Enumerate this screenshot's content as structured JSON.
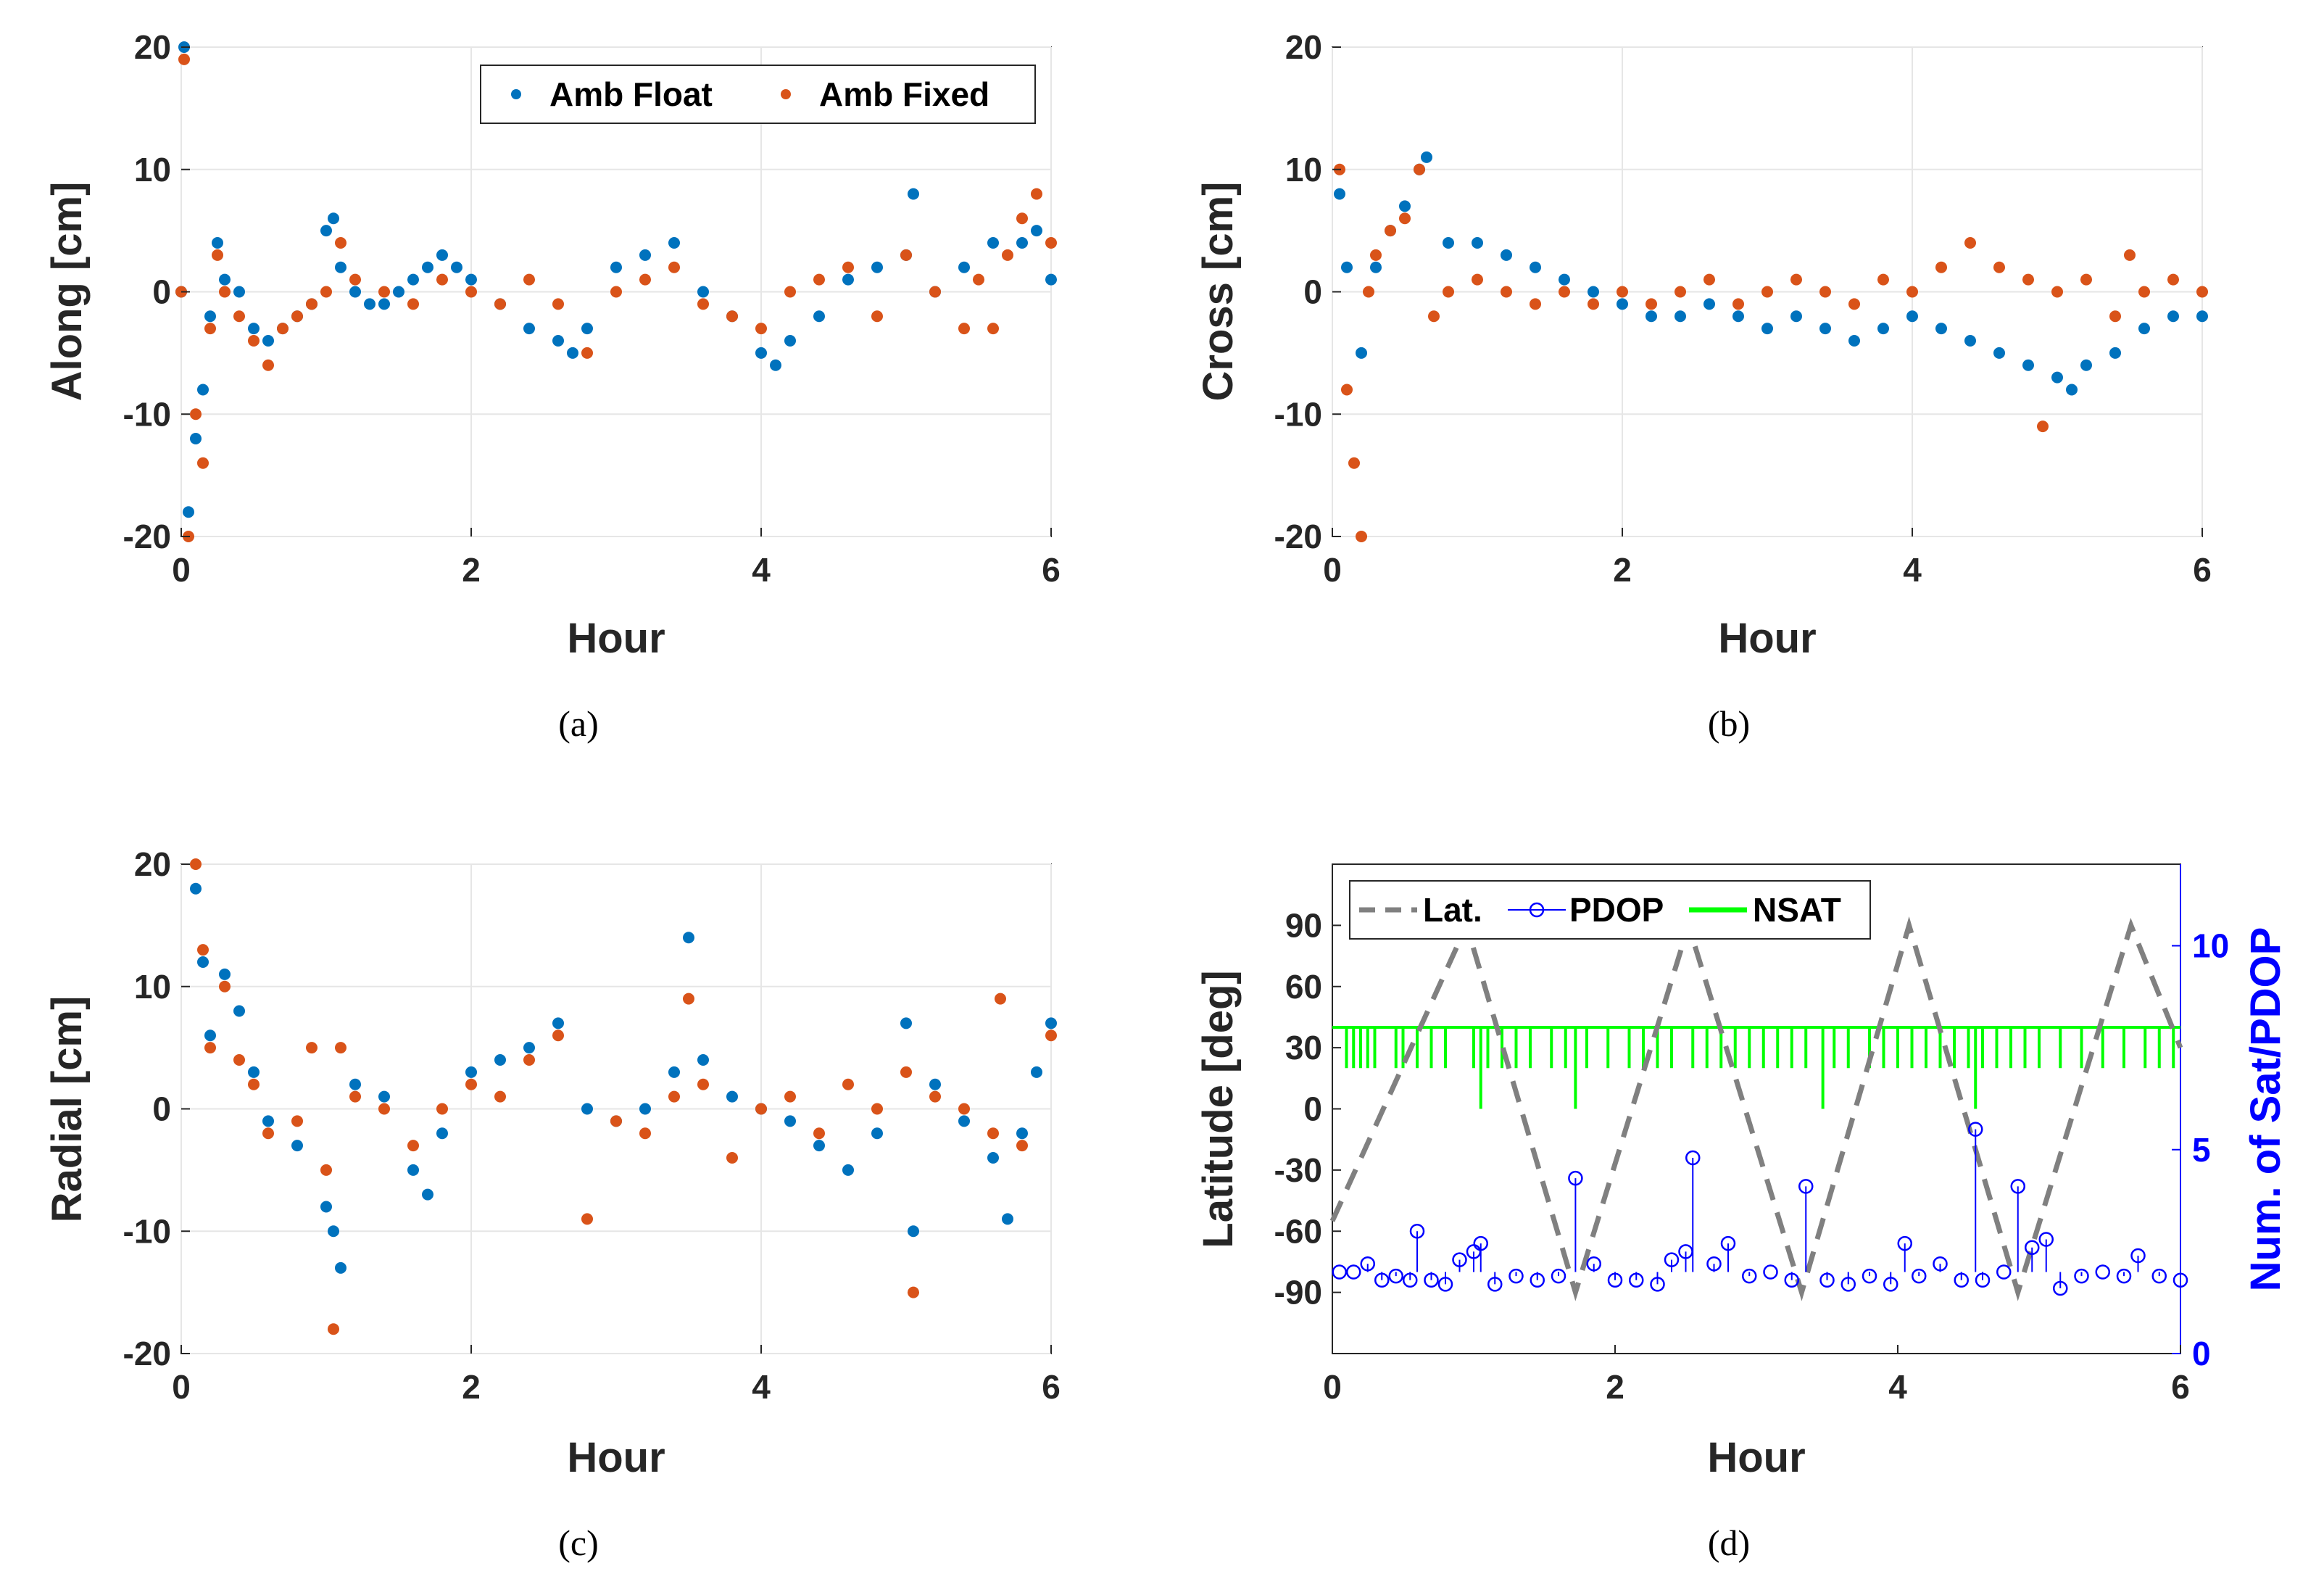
{
  "colors": {
    "float": "#0072BD",
    "fixed": "#D95319",
    "lat": "#808080",
    "pdop": "#0000FF",
    "nsat": "#00FF00",
    "right_axis": "#0000FF"
  },
  "chart_data": [
    {
      "type": "scatter",
      "caption": "(a)",
      "xlabel": "Hour",
      "ylabel": "Along [cm]",
      "xlim": [
        0,
        6
      ],
      "ylim": [
        -20,
        20
      ],
      "xticks": [
        0,
        2,
        4,
        6
      ],
      "yticks": [
        -20,
        -10,
        0,
        10,
        20
      ],
      "grid": true,
      "legend": {
        "position": "top-right",
        "entries": [
          "Amb Float",
          "Amb Fixed"
        ]
      },
      "series": [
        {
          "name": "Amb Float",
          "color": "#0072BD",
          "x": [
            0.0,
            0.02,
            0.05,
            0.1,
            0.15,
            0.2,
            0.25,
            0.3,
            0.4,
            0.5,
            0.6,
            0.7,
            0.8,
            0.9,
            1.0,
            1.05,
            1.1,
            1.2,
            1.3,
            1.4,
            1.5,
            1.6,
            1.7,
            1.8,
            1.9,
            2.0,
            2.2,
            2.4,
            2.6,
            2.7,
            2.8,
            3.0,
            3.2,
            3.4,
            3.6,
            3.8,
            4.0,
            4.1,
            4.2,
            4.4,
            4.6,
            4.8,
            5.0,
            5.05,
            5.2,
            5.4,
            5.6,
            5.8,
            5.9,
            6.0
          ],
          "y": [
            0,
            20,
            -18,
            -12,
            -8,
            -2,
            4,
            1,
            0,
            -3,
            -4,
            -3,
            -2,
            -1,
            5,
            6,
            2,
            0,
            -1,
            -1,
            0,
            1,
            2,
            3,
            2,
            1,
            -1,
            -3,
            -4,
            -5,
            -3,
            2,
            3,
            4,
            0,
            -2,
            -5,
            -6,
            -4,
            -2,
            1,
            2,
            3,
            8,
            0,
            2,
            4,
            4,
            5,
            1
          ]
        },
        {
          "name": "Amb Fixed",
          "color": "#D95319",
          "x": [
            0.0,
            0.02,
            0.05,
            0.1,
            0.15,
            0.2,
            0.25,
            0.3,
            0.4,
            0.5,
            0.6,
            0.7,
            0.8,
            0.9,
            1.0,
            1.1,
            1.2,
            1.4,
            1.6,
            1.8,
            2.0,
            2.2,
            2.4,
            2.6,
            2.8,
            3.0,
            3.2,
            3.4,
            3.6,
            3.8,
            4.0,
            4.2,
            4.4,
            4.6,
            4.8,
            5.0,
            5.2,
            5.4,
            5.5,
            5.6,
            5.7,
            5.8,
            5.9,
            6.0
          ],
          "y": [
            0,
            19,
            -20,
            -10,
            -14,
            -3,
            3,
            0,
            -2,
            -4,
            -6,
            -3,
            -2,
            -1,
            0,
            4,
            1,
            0,
            -1,
            1,
            0,
            -1,
            1,
            -1,
            -5,
            0,
            1,
            2,
            -1,
            -2,
            -3,
            0,
            1,
            2,
            -2,
            3,
            0,
            -3,
            1,
            -3,
            3,
            6,
            8,
            4
          ]
        }
      ]
    },
    {
      "type": "scatter",
      "caption": "(b)",
      "xlabel": "Hour",
      "ylabel": "Cross [cm]",
      "xlim": [
        0,
        6
      ],
      "ylim": [
        -20,
        20
      ],
      "xticks": [
        0,
        2,
        4,
        6
      ],
      "yticks": [
        -20,
        -10,
        0,
        10,
        20
      ],
      "grid": true,
      "series": [
        {
          "name": "Amb Float",
          "color": "#0072BD",
          "x": [
            0.05,
            0.1,
            0.2,
            0.3,
            0.4,
            0.5,
            0.6,
            0.65,
            0.8,
            1.0,
            1.2,
            1.4,
            1.6,
            1.8,
            2.0,
            2.2,
            2.4,
            2.6,
            2.8,
            3.0,
            3.2,
            3.4,
            3.6,
            3.8,
            4.0,
            4.2,
            4.4,
            4.6,
            4.8,
            5.0,
            5.1,
            5.2,
            5.4,
            5.6,
            5.8,
            6.0
          ],
          "y": [
            8,
            2,
            -5,
            2,
            5,
            7,
            10,
            11,
            4,
            4,
            3,
            2,
            1,
            0,
            -1,
            -2,
            -2,
            -1,
            -2,
            -3,
            -2,
            -3,
            -4,
            -3,
            -2,
            -3,
            -4,
            -5,
            -6,
            -7,
            -8,
            -6,
            -5,
            -3,
            -2,
            -2
          ]
        },
        {
          "name": "Amb Fixed",
          "color": "#D95319",
          "x": [
            0.05,
            0.1,
            0.15,
            0.2,
            0.25,
            0.3,
            0.4,
            0.5,
            0.6,
            0.7,
            0.8,
            1.0,
            1.2,
            1.4,
            1.6,
            1.8,
            2.0,
            2.2,
            2.4,
            2.6,
            2.8,
            3.0,
            3.2,
            3.4,
            3.6,
            3.8,
            4.0,
            4.2,
            4.4,
            4.6,
            4.8,
            4.9,
            5.0,
            5.2,
            5.4,
            5.5,
            5.6,
            5.8,
            6.0
          ],
          "y": [
            10,
            -8,
            -14,
            -20,
            0,
            3,
            5,
            6,
            10,
            -2,
            0,
            1,
            0,
            -1,
            0,
            -1,
            0,
            -1,
            0,
            1,
            -1,
            0,
            1,
            0,
            -1,
            1,
            0,
            2,
            4,
            2,
            1,
            -11,
            0,
            1,
            -2,
            3,
            0,
            1,
            0
          ]
        }
      ]
    },
    {
      "type": "scatter",
      "caption": "(c)",
      "xlabel": "Hour",
      "ylabel": "Radial [cm]",
      "xlim": [
        0,
        6
      ],
      "ylim": [
        -20,
        20
      ],
      "xticks": [
        0,
        2,
        4,
        6
      ],
      "yticks": [
        -20,
        -10,
        0,
        10,
        20
      ],
      "grid": true,
      "series": [
        {
          "name": "Amb Float",
          "color": "#0072BD",
          "x": [
            0.1,
            0.15,
            0.2,
            0.3,
            0.4,
            0.5,
            0.6,
            0.8,
            1.0,
            1.05,
            1.1,
            1.2,
            1.4,
            1.6,
            1.7,
            1.8,
            2.0,
            2.2,
            2.4,
            2.6,
            2.8,
            3.0,
            3.2,
            3.4,
            3.5,
            3.6,
            3.8,
            4.0,
            4.2,
            4.4,
            4.6,
            4.8,
            5.0,
            5.05,
            5.2,
            5.4,
            5.6,
            5.7,
            5.8,
            5.9,
            6.0
          ],
          "y": [
            18,
            12,
            6,
            11,
            8,
            3,
            -1,
            -3,
            -8,
            -10,
            -13,
            2,
            1,
            -5,
            -7,
            -2,
            3,
            4,
            5,
            7,
            0,
            -1,
            0,
            3,
            14,
            4,
            1,
            0,
            -1,
            -3,
            -5,
            -2,
            7,
            -10,
            2,
            -1,
            -4,
            -9,
            -2,
            3,
            7
          ]
        },
        {
          "name": "Amb Fixed",
          "color": "#D95319",
          "x": [
            0.1,
            0.15,
            0.2,
            0.3,
            0.4,
            0.5,
            0.6,
            0.8,
            0.9,
            1.0,
            1.05,
            1.1,
            1.2,
            1.4,
            1.6,
            1.8,
            2.0,
            2.2,
            2.4,
            2.6,
            2.8,
            3.0,
            3.2,
            3.4,
            3.5,
            3.6,
            3.8,
            4.0,
            4.2,
            4.4,
            4.6,
            4.8,
            5.0,
            5.05,
            5.2,
            5.4,
            5.6,
            5.65,
            5.8,
            6.0
          ],
          "y": [
            20,
            13,
            5,
            10,
            4,
            2,
            -2,
            -1,
            5,
            -5,
            -18,
            5,
            1,
            0,
            -3,
            0,
            2,
            1,
            4,
            6,
            -9,
            -1,
            -2,
            1,
            9,
            2,
            -4,
            0,
            1,
            -2,
            2,
            0,
            3,
            -15,
            1,
            0,
            -2,
            9,
            -3,
            6
          ]
        }
      ]
    },
    {
      "type": "line",
      "caption": "(d)",
      "xlabel": "Hour",
      "ylabel": "Latitude [deg]",
      "y2label": "Num. of Sat/PDOP",
      "xlim": [
        0,
        6
      ],
      "ylim": [
        -120,
        120
      ],
      "y2lim": [
        0,
        12
      ],
      "xticks": [
        0,
        2,
        4,
        6
      ],
      "yticks": [
        -90,
        -60,
        -30,
        0,
        30,
        60,
        90
      ],
      "y2ticks": [
        0,
        5,
        10
      ],
      "grid": false,
      "legend": {
        "position": "top-left",
        "entries": [
          "Lat.",
          "PDOP",
          "NSAT"
        ]
      },
      "series": [
        {
          "name": "Lat.",
          "axis": "left",
          "style": "dashed",
          "color": "#808080",
          "x": [
            0.0,
            0.95,
            1.72,
            2.52,
            3.32,
            4.08,
            4.85,
            5.65,
            6.0
          ],
          "y": [
            -55,
            90,
            -90,
            90,
            -90,
            90,
            -90,
            90,
            30
          ]
        },
        {
          "name": "PDOP",
          "axis": "right",
          "style": "stem-circle",
          "color": "#0000FF",
          "x": [
            0.05,
            0.15,
            0.25,
            0.35,
            0.45,
            0.55,
            0.6,
            0.7,
            0.8,
            0.9,
            1.0,
            1.05,
            1.15,
            1.3,
            1.45,
            1.6,
            1.72,
            1.85,
            2.0,
            2.15,
            2.3,
            2.4,
            2.5,
            2.55,
            2.7,
            2.8,
            2.95,
            3.1,
            3.25,
            3.35,
            3.5,
            3.65,
            3.8,
            3.95,
            4.05,
            4.15,
            4.3,
            4.45,
            4.55,
            4.6,
            4.75,
            4.85,
            4.95,
            5.05,
            5.15,
            5.3,
            5.45,
            5.6,
            5.7,
            5.85,
            6.0
          ],
          "y": [
            2.0,
            2.0,
            2.2,
            1.8,
            1.9,
            1.8,
            3.0,
            1.8,
            1.7,
            2.3,
            2.5,
            2.7,
            1.7,
            1.9,
            1.8,
            1.9,
            4.3,
            2.2,
            1.8,
            1.8,
            1.7,
            2.3,
            2.5,
            4.8,
            2.2,
            2.7,
            1.9,
            2.0,
            1.8,
            4.1,
            1.8,
            1.7,
            1.9,
            1.7,
            2.7,
            1.9,
            2.2,
            1.8,
            5.5,
            1.8,
            2.0,
            4.1,
            2.6,
            2.8,
            1.6,
            1.9,
            2.0,
            1.9,
            2.4,
            1.9,
            1.8
          ]
        },
        {
          "name": "NSAT",
          "axis": "right",
          "style": "step",
          "color": "#00FF00",
          "baseline": 8,
          "dips_x": [
            0.1,
            0.15,
            0.2,
            0.25,
            0.3,
            0.45,
            0.5,
            0.6,
            0.7,
            0.8,
            1.0,
            1.05,
            1.1,
            1.2,
            1.3,
            1.4,
            1.55,
            1.65,
            1.72,
            1.8,
            1.95,
            2.1,
            2.2,
            2.3,
            2.4,
            2.55,
            2.65,
            2.75,
            2.85,
            2.95,
            3.05,
            3.15,
            3.25,
            3.35,
            3.47,
            3.55,
            3.65,
            3.8,
            3.9,
            4.0,
            4.1,
            4.2,
            4.3,
            4.4,
            4.5,
            4.55,
            4.6,
            4.7,
            4.8,
            4.9,
            5.0,
            5.15,
            5.3,
            5.45,
            5.6,
            5.75,
            5.85,
            5.95
          ],
          "dips_y": [
            7,
            7,
            7,
            7,
            7,
            7,
            7,
            7,
            7,
            7,
            7,
            6,
            7,
            7,
            7,
            7,
            7,
            7,
            6,
            7,
            7,
            7,
            7,
            7,
            7,
            7,
            7,
            7,
            7,
            7,
            7,
            7,
            7,
            7,
            6,
            7,
            7,
            7,
            7,
            7,
            7,
            7,
            7,
            7,
            7,
            6,
            7,
            7,
            7,
            7,
            7,
            7,
            7,
            7,
            7,
            7,
            7,
            7
          ]
        }
      ]
    }
  ]
}
